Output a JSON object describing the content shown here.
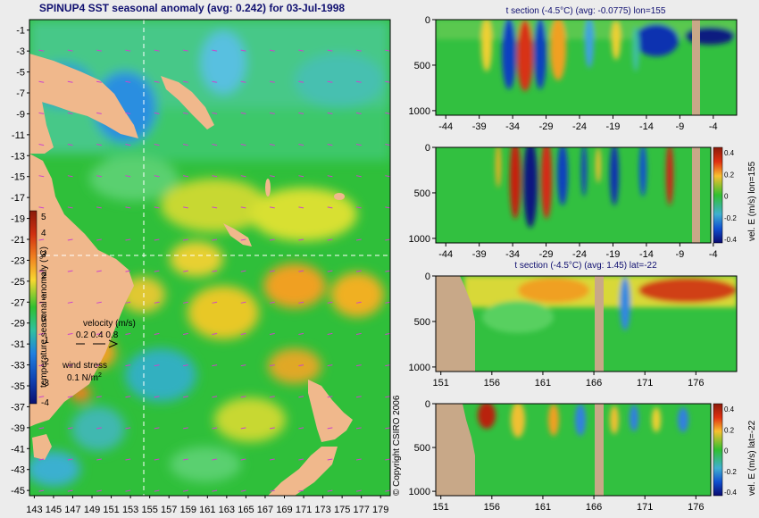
{
  "map": {
    "title": "SPINUP4 SST seasonal anomaly (avg: 0.242) for 03-Jul-1998",
    "x_ticks": [
      "143",
      "145",
      "147",
      "149",
      "151",
      "153",
      "155",
      "157",
      "159",
      "161",
      "163",
      "165",
      "167",
      "169",
      "171",
      "173",
      "175",
      "177",
      "179"
    ],
    "y_ticks": [
      "-1",
      "-3",
      "-5",
      "-7",
      "-9",
      "-11",
      "-13",
      "-15",
      "-17",
      "-19",
      "-21",
      "-23",
      "-25",
      "-27",
      "-29",
      "-31",
      "-33",
      "-35",
      "-37",
      "-39",
      "-41",
      "-43",
      "-45"
    ],
    "colorbar_ticks": [
      "5",
      "4",
      "3",
      "2",
      "1",
      "0",
      "-1",
      "-2",
      "-3",
      "-4"
    ],
    "colorbar_label": "temperature seasonal anomaly (°C)",
    "velocity_label": "velocity (m/s)",
    "velocity_values": "0.2 0.4 0.8",
    "wind_label": "wind stress",
    "wind_value": "0.1 N/m",
    "wind_value_sup": "2",
    "copyright": "© Copyright CSIRO 2006",
    "colors": {
      "land": "#f0b88c",
      "vector": "#cc44cc",
      "crosshair": "#ffffff"
    }
  },
  "chart_data": [
    {
      "type": "heatmap",
      "title": "SPINUP4 SST seasonal anomaly (avg: 0.242) for 03-Jul-1998",
      "xlim": [
        142.5,
        180
      ],
      "ylim": [
        -45.5,
        0
      ],
      "colorbar_range": [
        -4,
        5
      ],
      "colorbar_label": "temperature seasonal anomaly (°C)",
      "crosshair": {
        "lon": 155,
        "lat": -22
      },
      "grid": false
    },
    {
      "type": "heatmap",
      "title": "t section (-4.5°C) (avg: -0.0775) lon=155",
      "x_ticks": [
        -44,
        -39,
        -34,
        -29,
        -24,
        -19,
        -14,
        -9,
        -4
      ],
      "y_ticks": [
        0,
        500,
        1000
      ],
      "xlim": [
        -45.5,
        -0.5
      ],
      "ylim": [
        1050,
        0
      ]
    },
    {
      "type": "heatmap",
      "title": "",
      "x_ticks": [
        -44,
        -39,
        -34,
        -29,
        -24,
        -19,
        -14,
        -9,
        -4
      ],
      "y_ticks": [
        0,
        500,
        1000
      ],
      "xlim": [
        -45.5,
        -0.5
      ],
      "ylim": [
        1050,
        0
      ],
      "colorbar_ticks": [
        "0.4",
        "0.2",
        "0",
        "-0.2",
        "-0.4"
      ],
      "colorbar_label": "vel. E (m/s) lon=155"
    },
    {
      "type": "heatmap",
      "title": "t section (-4.5°C) (avg: 1.45) lat=-22",
      "x_ticks": [
        151,
        156,
        161,
        166,
        171,
        176
      ],
      "y_ticks": [
        0,
        500,
        1000
      ],
      "xlim": [
        150.5,
        180
      ],
      "ylim": [
        1050,
        0
      ]
    },
    {
      "type": "heatmap",
      "title": "",
      "x_ticks": [
        151,
        156,
        161,
        166,
        171,
        176
      ],
      "y_ticks": [
        0,
        500,
        1000
      ],
      "xlim": [
        150.5,
        180
      ],
      "ylim": [
        1050,
        0
      ],
      "colorbar_ticks": [
        "0.4",
        "0.2",
        "0",
        "-0.2",
        "-0.4"
      ],
      "colorbar_label": "vel. E (m/s) lat=-22"
    }
  ]
}
